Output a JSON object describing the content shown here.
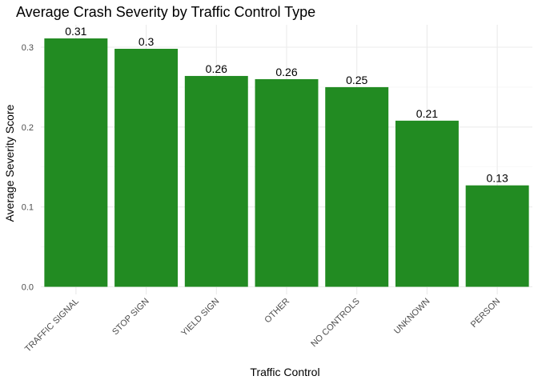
{
  "chart_data": {
    "type": "bar",
    "title": "Average Crash Severity by Traffic Control Type",
    "xlabel": "Traffic Control",
    "ylabel": "Average Severity Score",
    "categories": [
      "TRAFFIC SIGNAL",
      "STOP SIGN",
      "YIELD SIGN",
      "OTHER",
      "NO CONTROLS",
      "UNKNOWN",
      "PERSON"
    ],
    "values": [
      0.311,
      0.298,
      0.264,
      0.26,
      0.25,
      0.208,
      0.127
    ],
    "data_labels": [
      "0.31",
      "0.3",
      "0.26",
      "0.26",
      "0.25",
      "0.21",
      "0.13"
    ],
    "y_ticks": [
      "0.0",
      "0.1",
      "0.2",
      "0.3"
    ],
    "y_tick_values": [
      0,
      0.1,
      0.2,
      0.3
    ],
    "ylim": [
      0,
      0.326
    ],
    "grid": true,
    "legend": "none",
    "bar_color": "#228B22"
  }
}
